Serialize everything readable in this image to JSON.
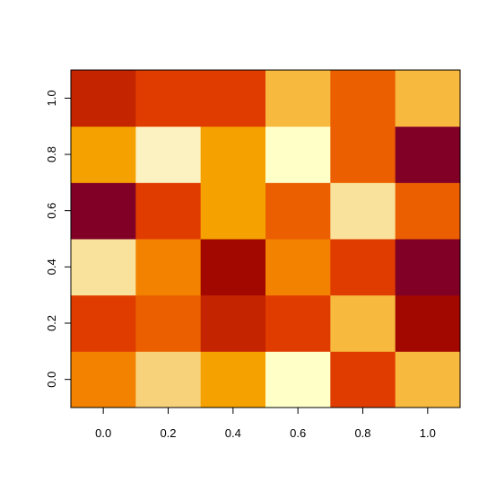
{
  "chart_data": {
    "type": "heatmap",
    "title": "",
    "xlabel": "",
    "ylabel": "",
    "x": [
      0.0,
      0.2,
      0.4,
      0.6,
      0.8,
      1.0
    ],
    "y": [
      0.0,
      0.2,
      0.4,
      0.6,
      0.8,
      1.0
    ],
    "xlim": [
      -0.1,
      1.1
    ],
    "ylim": [
      -0.1,
      1.1
    ],
    "x_ticks": [
      "0.0",
      "0.2",
      "0.4",
      "0.6",
      "0.8",
      "1.0"
    ],
    "y_ticks": [
      "0.0",
      "0.2",
      "0.4",
      "0.6",
      "0.8",
      "1.0"
    ],
    "colormap": "heat (red-yellow)",
    "cell_colors": [
      [
        "#F28200",
        "#F7D27A",
        "#F5A200",
        "#FFFFC8",
        "#E03C00",
        "#F7B93E"
      ],
      [
        "#E03C00",
        "#EB5F00",
        "#C42400",
        "#E03C00",
        "#F7B93E",
        "#A30800"
      ],
      [
        "#F9E39C",
        "#F28200",
        "#A30800",
        "#F28200",
        "#E03C00",
        "#800026"
      ],
      [
        "#800026",
        "#E03C00",
        "#F5A200",
        "#EB5F00",
        "#F9E39C",
        "#EB5F00"
      ],
      [
        "#F5A200",
        "#FCF1C0",
        "#F5A200",
        "#FFFFC8",
        "#EB5F00",
        "#800026"
      ],
      [
        "#C42400",
        "#E03C00",
        "#E03C00",
        "#F7B93E",
        "#EB5F00",
        "#F7B93E"
      ]
    ],
    "box": true,
    "grid": false,
    "legend": "none"
  }
}
